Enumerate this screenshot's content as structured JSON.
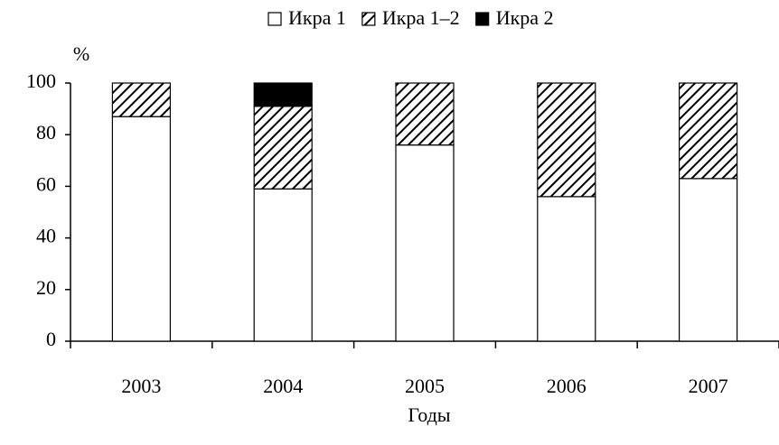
{
  "chart_data": {
    "type": "stacked-bar",
    "y_label": "%",
    "x_label": "Годы",
    "categories": [
      "2003",
      "2004",
      "2005",
      "2006",
      "2007"
    ],
    "series": [
      {
        "name": "Икра 1",
        "color": "#ffffff",
        "values": [
          87,
          59,
          76,
          56,
          63
        ]
      },
      {
        "name": "Икра 1–2",
        "color": "#000000",
        "pattern": "diagonal",
        "values": [
          13,
          32,
          24,
          44,
          37
        ]
      },
      {
        "name": "Икра 2",
        "color": "#000000",
        "values": [
          0,
          9,
          0,
          0,
          0
        ]
      }
    ],
    "ylim": [
      0,
      100
    ],
    "yticks": [
      0,
      20,
      40,
      60,
      80,
      100
    ],
    "grid": false,
    "legend": "top"
  }
}
